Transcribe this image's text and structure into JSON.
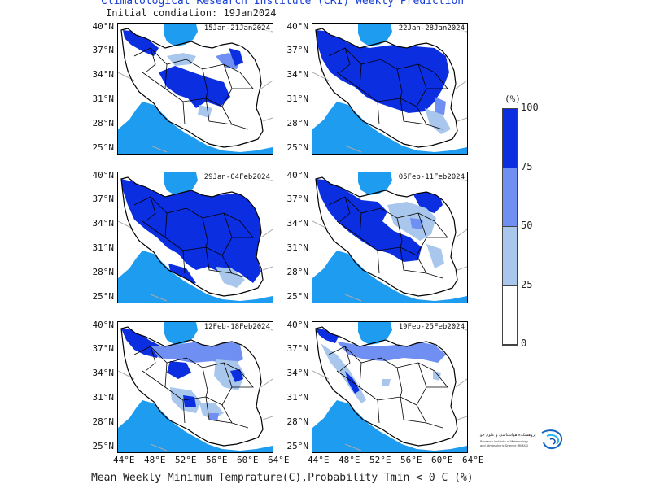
{
  "header": {
    "title": "Climatological Research Institute (CRI) Weekly Prediction",
    "subtitle": "Initial condiation: 19Jan2024"
  },
  "footer": {
    "caption": "Mean Weekly Minimum Temprature(C),Probability Tmin < 0 C (%)"
  },
  "panels": [
    {
      "label": "15Jan-21Jan2024",
      "coverage": "medium"
    },
    {
      "label": "22Jan-28Jan2024",
      "coverage": "high"
    },
    {
      "label": "29Jan-04Feb2024",
      "coverage": "very-high"
    },
    {
      "label": "05Feb-11Feb2024",
      "coverage": "high-mixed"
    },
    {
      "label": "12Feb-18Feb2024",
      "coverage": "medium-mixed"
    },
    {
      "label": "19Feb-25Feb2024",
      "coverage": "low"
    }
  ],
  "axes": {
    "y_ticks": [
      "40°N",
      "37°N",
      "34°N",
      "31°N",
      "28°N",
      "25°N"
    ],
    "x_ticks": [
      "44°E",
      "48°E",
      "52°E",
      "56°E",
      "60°E",
      "64°E"
    ]
  },
  "legend": {
    "unit": "(%)",
    "ticks": [
      "100",
      "75",
      "50",
      "25",
      "0"
    ],
    "colors": [
      "#0a2ee0",
      "#6f8ff2",
      "#a9c7ec",
      "#ffffff"
    ]
  },
  "colors": {
    "sea": "#1e9cf0",
    "title": "#1a3fd8",
    "border": "#000000"
  },
  "logo": {
    "text_fa": "پژوهشکده هواشناسی و علوم جو",
    "text_en": "Research Institute of Meteorology and Atmospheric Science (RIMAS)"
  }
}
